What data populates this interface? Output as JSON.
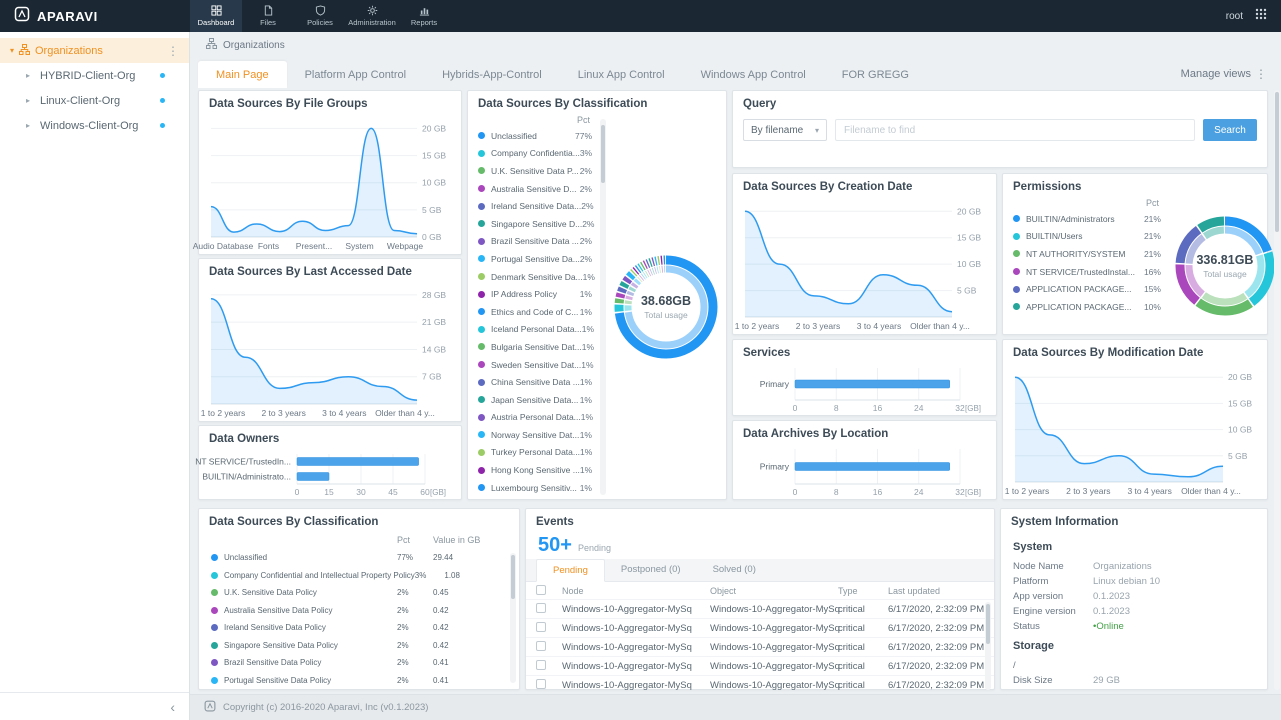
{
  "colors": {
    "palette": [
      "#2196f3",
      "#26c6da",
      "#66bb6a",
      "#ab47bc",
      "#5c6bc0",
      "#26a69a",
      "#7e57c2",
      "#29b6f6",
      "#9ccc65",
      "#8e24aa"
    ],
    "accent_orange": "#f09121",
    "primary_blue": "#2196f3",
    "online_green": "#43a047",
    "topbar_bg": "#1b2834"
  },
  "topbar": {
    "brand": "APARAVI",
    "user": "root",
    "nav": [
      {
        "label": "Dashboard",
        "icon": "dashboard-icon",
        "active": true
      },
      {
        "label": "Files",
        "icon": "files-icon",
        "active": false
      },
      {
        "label": "Policies",
        "icon": "policies-icon",
        "active": false
      },
      {
        "label": "Administration",
        "icon": "administration-icon",
        "active": false
      },
      {
        "label": "Reports",
        "icon": "reports-icon",
        "active": false
      }
    ]
  },
  "sidebar": {
    "root": {
      "label": "Organizations"
    },
    "items": [
      {
        "label": "HYBRID-Client-Org"
      },
      {
        "label": "Linux-Client-Org"
      },
      {
        "label": "Windows-Client-Org"
      }
    ]
  },
  "breadcrumb": {
    "label": "Organizations"
  },
  "view_tabs": {
    "active": "Main Page",
    "tabs": [
      "Main Page",
      "Platform App Control",
      "Hybrids-App-Control",
      "Linux App Control",
      "Windows App Control",
      "FOR GREGG"
    ],
    "manage": "Manage views"
  },
  "cards": {
    "file_groups": {
      "title": "Data Sources By File Groups",
      "chart": {
        "type": "area",
        "values": [
          5.6,
          0.9,
          2.4,
          1.0,
          2.9,
          1.2,
          2.1,
          20,
          1.2,
          0.6
        ],
        "categories": [
          "Audio Database",
          "Fonts",
          "Present...",
          "System",
          "Webpage"
        ],
        "yticks": [
          0,
          5,
          10,
          15,
          20
        ],
        "ytick_labels": [
          "0 GB",
          "5 GB",
          "10 GB",
          "15 GB",
          "20 GB"
        ],
        "ymax": 21
      }
    },
    "last_accessed": {
      "title": "Data Sources By Last Accessed Date",
      "chart": {
        "type": "area",
        "values": [
          27,
          12,
          4,
          5.5,
          7,
          4.5,
          1
        ],
        "categories": [
          "1 to 2 years",
          "2 to 3 years",
          "3 to 4 years",
          "Older than 4 y..."
        ],
        "yticks": [
          7,
          14,
          21,
          28
        ],
        "ytick_labels": [
          "7 GB",
          "14 GB",
          "21 GB",
          "28 GB"
        ],
        "ymax": 29
      }
    },
    "data_owners": {
      "title": "Data Owners",
      "chart": {
        "type": "hbar",
        "label_width": 92,
        "rows": [
          {
            "label": "NT SERVICE/TrustedIn...",
            "value": 57
          },
          {
            "label": "BUILTIN/Administrato...",
            "value": 15
          }
        ],
        "xticks": [
          0,
          15,
          30,
          45,
          60
        ],
        "unit": "[GB]"
      }
    },
    "classification_mid": {
      "title": "Data Sources By Classification",
      "col_pct": "Pct",
      "items": [
        {
          "label": "Unclassified",
          "pct": "77%"
        },
        {
          "label": "Company Confidentia...",
          "pct": "3%"
        },
        {
          "label": "U.K. Sensitive Data P...",
          "pct": "2%"
        },
        {
          "label": "Australia Sensitive D...",
          "pct": "2%"
        },
        {
          "label": "Ireland Sensitive Data...",
          "pct": "2%"
        },
        {
          "label": "Singapore Sensitive D...",
          "pct": "2%"
        },
        {
          "label": "Brazil Sensitive Data ...",
          "pct": "2%"
        },
        {
          "label": "Portugal Sensitive Da...",
          "pct": "2%"
        },
        {
          "label": "Denmark Sensitive Da...",
          "pct": "1%"
        },
        {
          "label": "IP Address Policy",
          "pct": "1%"
        },
        {
          "label": "Ethics and Code of C...",
          "pct": "1%"
        },
        {
          "label": "Iceland Personal Data...",
          "pct": "1%"
        },
        {
          "label": "Bulgaria Sensitive Dat...",
          "pct": "1%"
        },
        {
          "label": "Sweden Sensitive Dat...",
          "pct": "1%"
        },
        {
          "label": "China Sensitive Data ...",
          "pct": "1%"
        },
        {
          "label": "Japan Sensitive Data...",
          "pct": "1%"
        },
        {
          "label": "Austria Personal Data...",
          "pct": "1%"
        },
        {
          "label": "Norway Sensitive Dat...",
          "pct": "1%"
        },
        {
          "label": "Turkey Personal Data...",
          "pct": "1%"
        },
        {
          "label": "Hong Kong Sensitive ...",
          "pct": "1%"
        },
        {
          "label": "Luxembourg Sensitiv...",
          "pct": "1%"
        }
      ],
      "donut": {
        "type": "donut",
        "value": "38.68GB",
        "caption": "Total usage",
        "segments": [
          77,
          3,
          2,
          2,
          2,
          2,
          2,
          2,
          1,
          1,
          1,
          1,
          1,
          1,
          1,
          1,
          1,
          1,
          1,
          1,
          1
        ]
      }
    },
    "query": {
      "title": "Query",
      "filter": "By filename",
      "placeholder": "Filename to find",
      "button": "Search"
    },
    "creation_date": {
      "title": "Data Sources By Creation Date",
      "chart": {
        "type": "area",
        "values": [
          20,
          10,
          4,
          2.5,
          8,
          6,
          1
        ],
        "categories": [
          "1 to 2 years",
          "2 to 3 years",
          "3 to 4 years",
          "Older than 4 y..."
        ],
        "yticks": [
          5,
          10,
          15,
          20
        ],
        "ytick_labels": [
          "5 GB",
          "10 GB",
          "15 GB",
          "20 GB"
        ],
        "ymax": 21
      }
    },
    "permissions": {
      "title": "Permissions",
      "col_pct": "Pct",
      "items": [
        {
          "label": "BUILTIN/Administrators",
          "pct": "21%"
        },
        {
          "label": "BUILTIN/Users",
          "pct": "21%"
        },
        {
          "label": "NT AUTHORITY/SYSTEM",
          "pct": "21%"
        },
        {
          "label": "NT SERVICE/TrustedInstal...",
          "pct": "16%"
        },
        {
          "label": "APPLICATION PACKAGE...",
          "pct": "15%"
        },
        {
          "label": "APPLICATION PACKAGE...",
          "pct": "10%"
        }
      ],
      "donut": {
        "type": "donut",
        "value": "336.81GB",
        "caption": "Total usage",
        "segments": [
          21,
          21,
          21,
          16,
          15,
          10
        ]
      }
    },
    "services": {
      "title": "Services",
      "chart": {
        "type": "hbar",
        "label_width": 56,
        "rows": [
          {
            "label": "Primary",
            "value": 30
          }
        ],
        "xticks": [
          0,
          8,
          16,
          24,
          32
        ],
        "unit": "[GB]"
      }
    },
    "archives": {
      "title": "Data Archives By Location",
      "chart": {
        "type": "hbar",
        "label_width": 56,
        "rows": [
          {
            "label": "Primary",
            "value": 30
          }
        ],
        "xticks": [
          0,
          8,
          16,
          24,
          32
        ],
        "unit": "[GB]"
      }
    },
    "modification_date": {
      "title": "Data Sources By Modification Date",
      "chart": {
        "type": "area",
        "values": [
          20,
          9,
          3.5,
          5,
          1.5,
          1,
          3
        ],
        "categories": [
          "1 to 2 years",
          "2 to 3 years",
          "3 to 4 years",
          "Older than 4 y..."
        ],
        "yticks": [
          5,
          10,
          15,
          20
        ],
        "ytick_labels": [
          "5 GB",
          "10 GB",
          "15 GB",
          "20 GB"
        ],
        "ymax": 21
      }
    },
    "classification_table": {
      "title": "Data Sources By Classification",
      "columns": {
        "pct": "Pct",
        "value": "Value in GB"
      },
      "rows": [
        {
          "label": "Unclassified",
          "pct": "77%",
          "value": "29.44"
        },
        {
          "label": "Company Confidential and Intellectual Property Policy",
          "pct": "3%",
          "value": "1.08"
        },
        {
          "label": "U.K. Sensitive Data Policy",
          "pct": "2%",
          "value": "0.45"
        },
        {
          "label": "Australia Sensitive Data Policy",
          "pct": "2%",
          "value": "0.42"
        },
        {
          "label": "Ireland Sensitive Data Policy",
          "pct": "2%",
          "value": "0.42"
        },
        {
          "label": "Singapore Sensitive Data Policy",
          "pct": "2%",
          "value": "0.42"
        },
        {
          "label": "Brazil Sensitive Data Policy",
          "pct": "2%",
          "value": "0.41"
        },
        {
          "label": "Portugal Sensitive Data Policy",
          "pct": "2%",
          "value": "0.41"
        }
      ]
    },
    "events": {
      "title": "Events",
      "count": "50+",
      "count_label": "Pending",
      "tabs": [
        {
          "label": "Pending",
          "active": true
        },
        {
          "label": "Postponed (0)",
          "active": false
        },
        {
          "label": "Solved (0)",
          "active": false
        }
      ],
      "columns": [
        "Node",
        "Object",
        "Type",
        "Last updated"
      ],
      "rows": [
        {
          "node": "Windows-10-Aggregator-MySq",
          "object": "Windows-10-Aggregator-MySq",
          "type": "critical",
          "updated": "6/17/2020, 2:32:09 PM"
        },
        {
          "node": "Windows-10-Aggregator-MySq",
          "object": "Windows-10-Aggregator-MySq",
          "type": "critical",
          "updated": "6/17/2020, 2:32:09 PM"
        },
        {
          "node": "Windows-10-Aggregator-MySq",
          "object": "Windows-10-Aggregator-MySq",
          "type": "critical",
          "updated": "6/17/2020, 2:32:09 PM"
        },
        {
          "node": "Windows-10-Aggregator-MySq",
          "object": "Windows-10-Aggregator-MySq",
          "type": "critical",
          "updated": "6/17/2020, 2:32:09 PM"
        },
        {
          "node": "Windows-10-Aggregator-MySq",
          "object": "Windows-10-Aggregator-MySq",
          "type": "critical",
          "updated": "6/17/2020, 2:32:09 PM"
        }
      ]
    },
    "system_info": {
      "title": "System Information",
      "sections": [
        {
          "heading": "System",
          "rows": [
            {
              "label": "Node Name",
              "value": "Organizations"
            },
            {
              "label": "Platform",
              "value": "Linux debian 10"
            },
            {
              "label": "App version",
              "value": "0.1.2023"
            },
            {
              "label": "Engine version",
              "value": "0.1.2023"
            },
            {
              "label": "Status",
              "value": "Online",
              "online": true
            }
          ]
        },
        {
          "heading": "Storage",
          "rows": [
            {
              "label": "/",
              "value": ""
            },
            {
              "label": "Disk Size",
              "value": "29 GB"
            }
          ]
        }
      ]
    }
  },
  "footer": {
    "copyright": "Copyright (c) 2016-2020 Aparavi, Inc (v0.1.2023)"
  }
}
